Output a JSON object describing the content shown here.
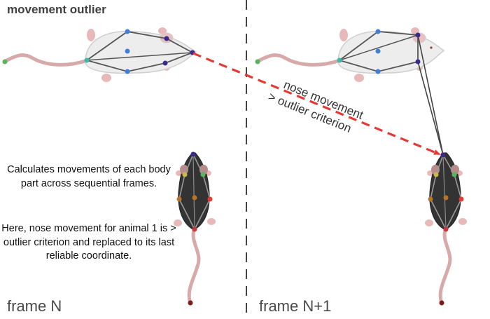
{
  "title": "movement outlier",
  "frame_left_label": "frame N",
  "frame_right_label": "frame N+1",
  "annotation_line1": "nose movement",
  "annotation_line2": "> outlier criterion",
  "description_p1": "Calculates movements of each body part across sequential frames.",
  "description_p2": "Here, nose movement for animal 1 is > outlier criterion and replaced to its last reliable coordinate.",
  "colors": {
    "arrow": "#e53935",
    "divider": "#444444",
    "rat_white_body": "#ededed",
    "rat_dark_body": "#333333",
    "tail": "#d7a9a9",
    "keypoint_blue": "#3f7fd9",
    "keypoint_purple": "#3b2a8c",
    "keypoint_teal": "#3cb9a8",
    "keypoint_green": "#58b55c",
    "keypoint_dark_red": "#7a1c1c"
  }
}
